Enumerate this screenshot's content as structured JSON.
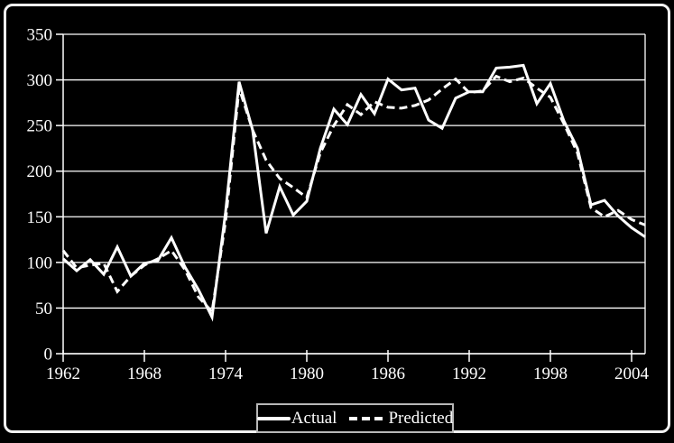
{
  "chart_data": {
    "type": "line",
    "title": "",
    "xlabel": "",
    "ylabel": "",
    "x": [
      1962,
      1963,
      1964,
      1965,
      1966,
      1967,
      1968,
      1969,
      1970,
      1971,
      1972,
      1973,
      1974,
      1975,
      1976,
      1977,
      1978,
      1979,
      1980,
      1981,
      1982,
      1983,
      1984,
      1985,
      1986,
      1987,
      1988,
      1989,
      1990,
      1991,
      1992,
      1993,
      1994,
      1995,
      1996,
      1997,
      1998,
      1999,
      2000,
      2001,
      2002,
      2003,
      2004,
      2005
    ],
    "series": [
      {
        "name": "Actual",
        "style": "solid",
        "values": [
          104,
          91,
          103,
          87,
          117,
          85,
          99,
          102,
          127,
          95,
          70,
          40,
          155,
          298,
          245,
          132,
          183,
          152,
          167,
          225,
          268,
          251,
          284,
          263,
          301,
          289,
          291,
          256,
          247,
          280,
          287,
          287,
          313,
          314,
          316,
          274,
          296,
          255,
          225,
          163,
          168,
          151,
          138,
          128
        ]
      },
      {
        "name": "Predicted",
        "style": "dashed",
        "values": [
          113,
          94,
          97,
          99,
          68,
          85,
          97,
          104,
          113,
          92,
          62,
          46,
          145,
          291,
          245,
          212,
          192,
          182,
          171,
          220,
          250,
          273,
          262,
          276,
          270,
          269,
          272,
          278,
          290,
          301,
          286,
          288,
          304,
          298,
          302,
          291,
          281,
          252,
          220,
          160,
          150,
          157,
          147,
          141
        ]
      }
    ],
    "ylim": [
      0,
      350
    ],
    "yticks": [
      0,
      50,
      100,
      150,
      200,
      250,
      300,
      350
    ],
    "xticks": [
      1962,
      1968,
      1974,
      1980,
      1986,
      1992,
      1998,
      2004
    ],
    "grid": "horizontal",
    "legend_position": "bottom-center",
    "colors": {
      "background": "#000000",
      "foreground": "#ffffff",
      "gridline": "#ffffff",
      "legend_border": "#b8b8b8"
    }
  }
}
